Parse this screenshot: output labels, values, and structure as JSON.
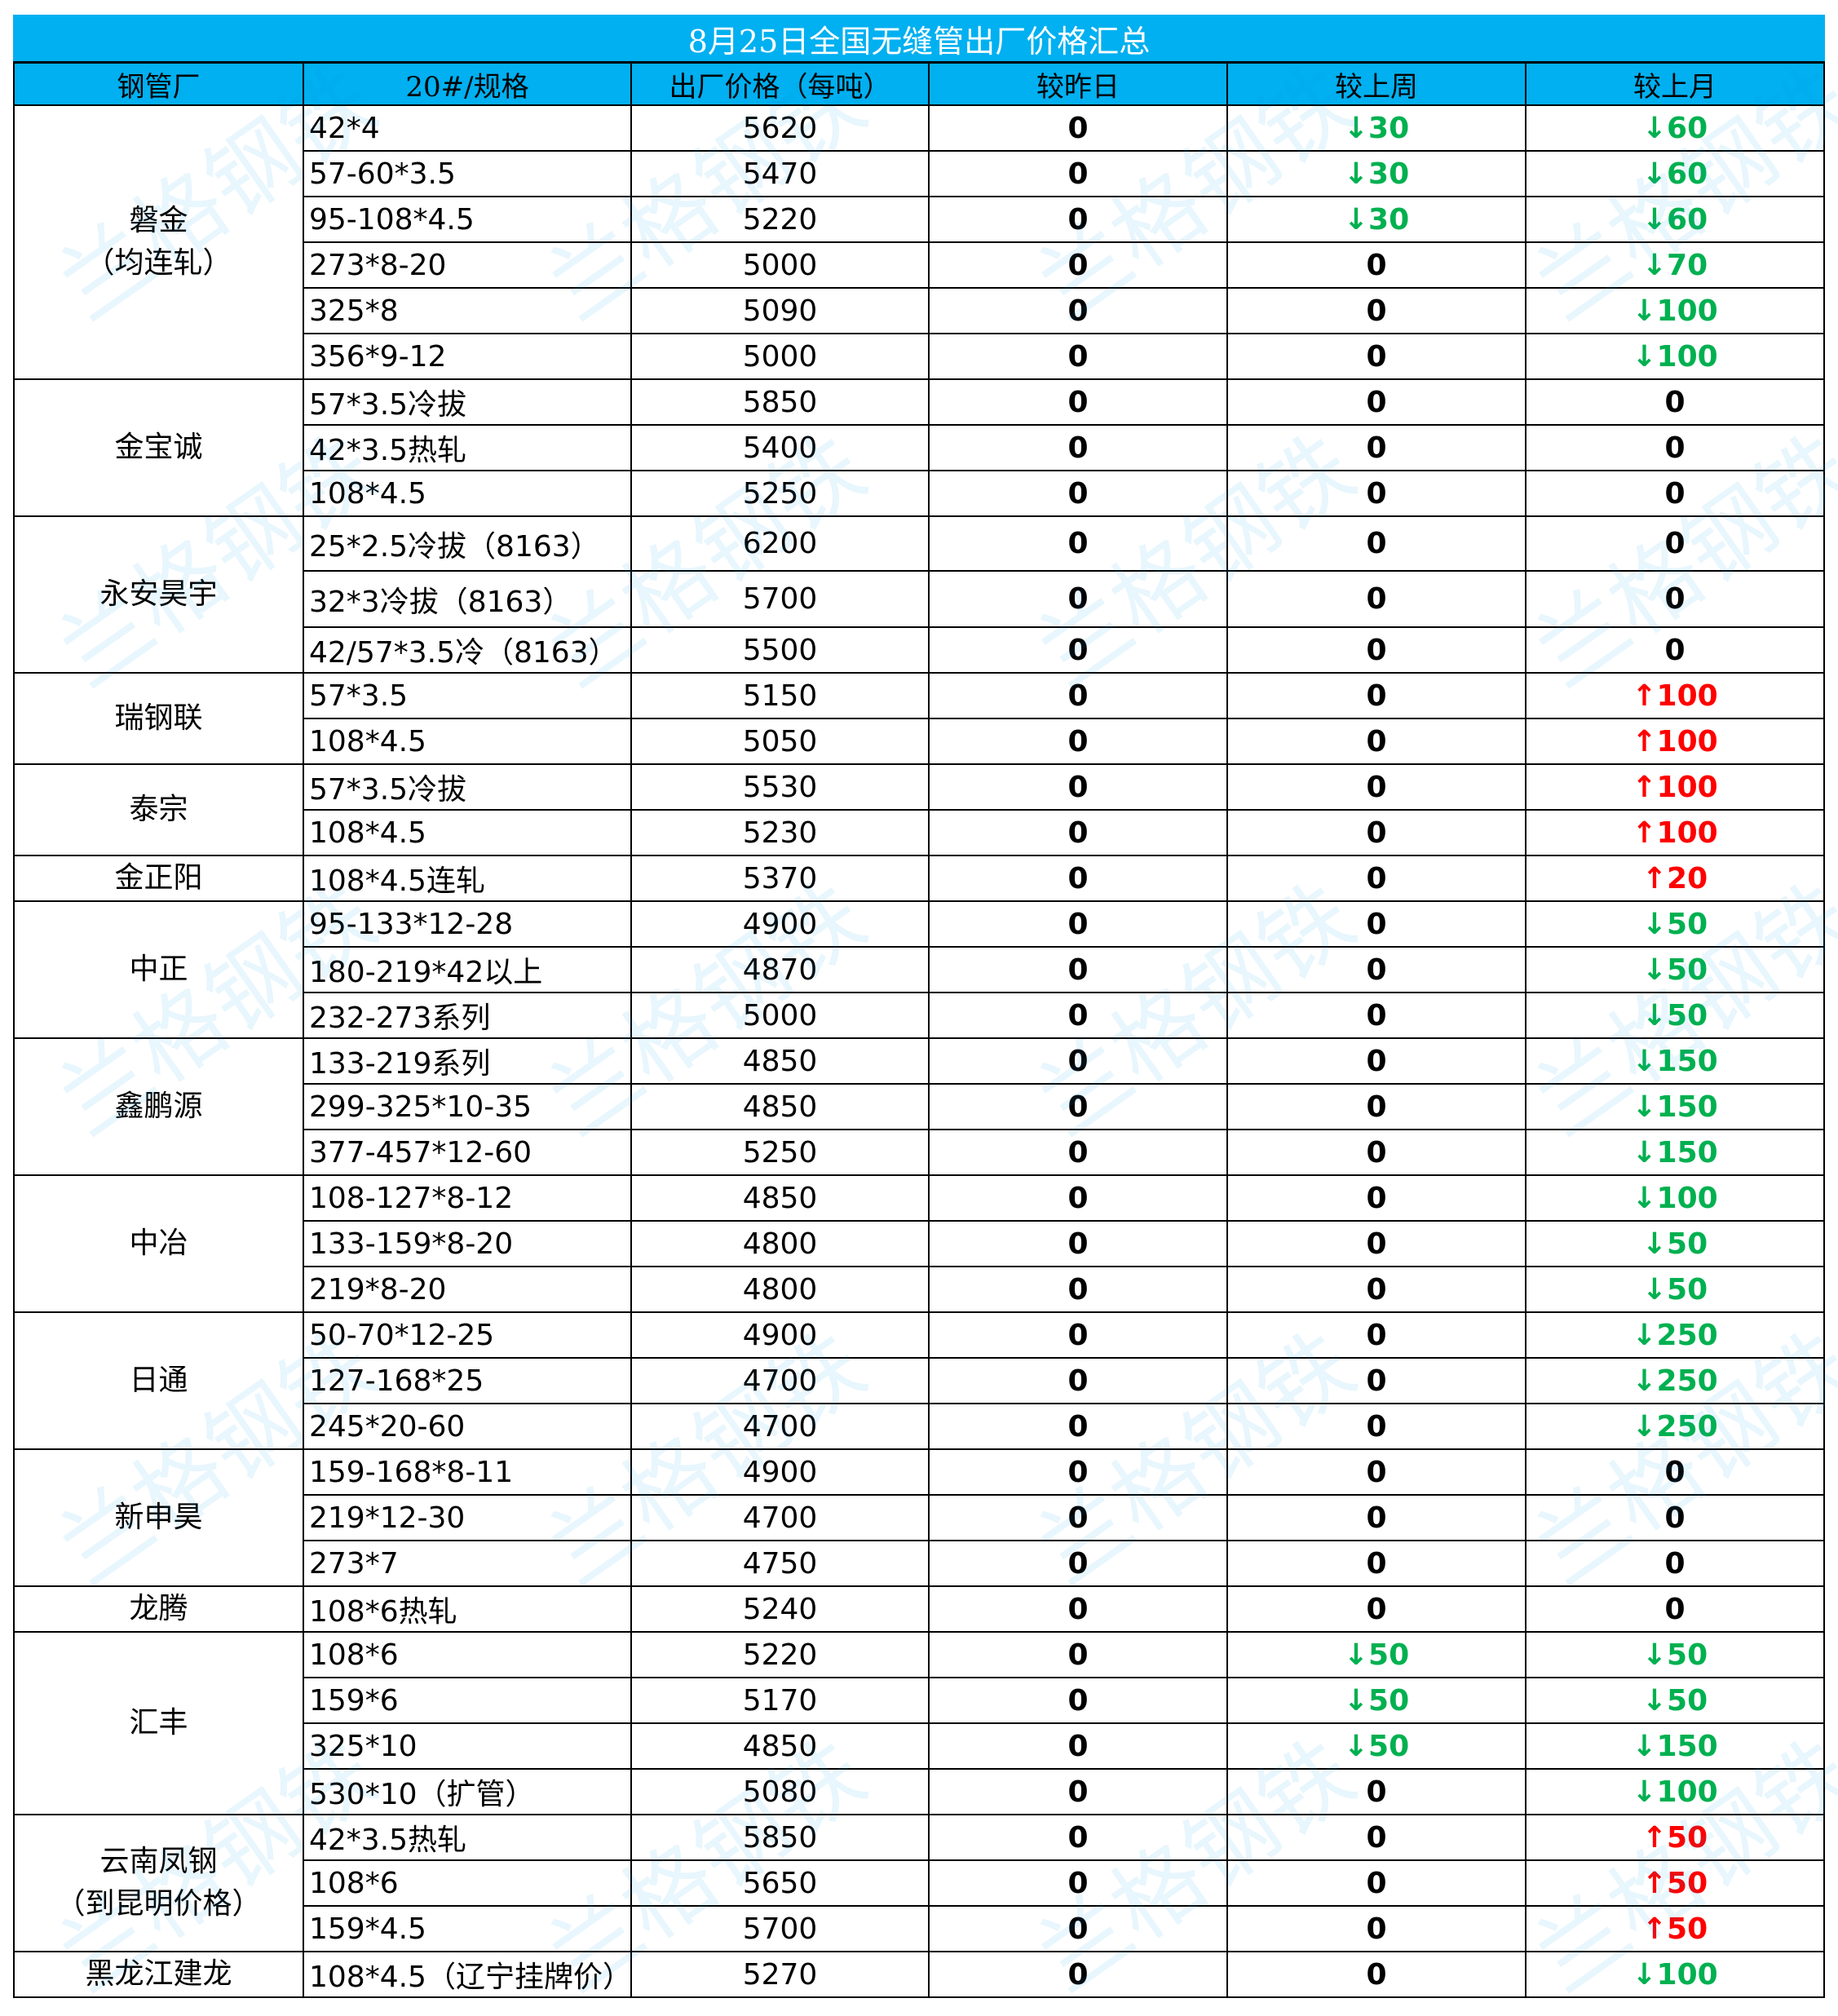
{
  "title": "8月25日全国无缝管出厂价格汇总",
  "headers": [
    "钢管厂",
    "20#/规格",
    "出厂价格（每吨）",
    "较昨日",
    "较上周",
    "较上月"
  ],
  "watermark": "兰格钢铁",
  "colors": {
    "header_bg": "#00b0f0",
    "down": "#00b050",
    "up": "#ff0000",
    "neutral": "#000000"
  },
  "groups": [
    {
      "mill": "磐金\n（均连轧）",
      "rows": [
        {
          "spec": "42*4",
          "price": "5620",
          "day": "0",
          "week": "↓30",
          "month": "↓60"
        },
        {
          "spec": "57-60*3.5",
          "price": "5470",
          "day": "0",
          "week": "↓30",
          "month": "↓60"
        },
        {
          "spec": "95-108*4.5",
          "price": "5220",
          "day": "0",
          "week": "↓30",
          "month": "↓60"
        },
        {
          "spec": "273*8-20",
          "price": "5000",
          "day": "0",
          "week": "0",
          "month": "↓70"
        },
        {
          "spec": "325*8",
          "price": "5090",
          "day": "0",
          "week": "0",
          "month": "↓100"
        },
        {
          "spec": "356*9-12",
          "price": "5000",
          "day": "0",
          "week": "0",
          "month": "↓100"
        }
      ]
    },
    {
      "mill": "金宝诚",
      "rows": [
        {
          "spec": "57*3.5冷拔",
          "price": "5850",
          "day": "0",
          "week": "0",
          "month": "0"
        },
        {
          "spec": "42*3.5热轧",
          "price": "5400",
          "day": "0",
          "week": "0",
          "month": "0"
        },
        {
          "spec": "108*4.5",
          "price": "5250",
          "day": "0",
          "week": "0",
          "month": "0"
        }
      ]
    },
    {
      "mill": "永安昊宇",
      "rows": [
        {
          "spec": "25*2.5冷拔（8163）",
          "price": "6200",
          "day": "0",
          "week": "0",
          "month": "0",
          "tall": 1
        },
        {
          "spec": "32*3冷拔（8163）",
          "price": "5700",
          "day": "0",
          "week": "0",
          "month": "0",
          "tall": 2
        },
        {
          "spec": "42/57*3.5冷（8163）",
          "price": "5500",
          "day": "0",
          "week": "0",
          "month": "0"
        }
      ]
    },
    {
      "mill": "瑞钢联",
      "rows": [
        {
          "spec": "57*3.5",
          "price": "5150",
          "day": "0",
          "week": "0",
          "month": "↑100"
        },
        {
          "spec": "108*4.5",
          "price": "5050",
          "day": "0",
          "week": "0",
          "month": "↑100"
        }
      ]
    },
    {
      "mill": "泰宗",
      "rows": [
        {
          "spec": "57*3.5冷拔",
          "price": "5530",
          "day": "0",
          "week": "0",
          "month": "↑100"
        },
        {
          "spec": "108*4.5",
          "price": "5230",
          "day": "0",
          "week": "0",
          "month": "↑100"
        }
      ]
    },
    {
      "mill": "金正阳",
      "rows": [
        {
          "spec": "108*4.5连轧",
          "price": "5370",
          "day": "0",
          "week": "0",
          "month": "↑20"
        }
      ]
    },
    {
      "mill": "中正",
      "rows": [
        {
          "spec": "95-133*12-28",
          "price": "4900",
          "day": "0",
          "week": "0",
          "month": "↓50"
        },
        {
          "spec": "180-219*42以上",
          "price": "4870",
          "day": "0",
          "week": "0",
          "month": "↓50"
        },
        {
          "spec": "232-273系列",
          "price": "5000",
          "day": "0",
          "week": "0",
          "month": "↓50"
        }
      ]
    },
    {
      "mill": "鑫鹏源",
      "rows": [
        {
          "spec": "133-219系列",
          "price": "4850",
          "day": "0",
          "week": "0",
          "month": "↓150"
        },
        {
          "spec": "299-325*10-35",
          "price": "4850",
          "day": "0",
          "week": "0",
          "month": "↓150"
        },
        {
          "spec": "377-457*12-60",
          "price": "5250",
          "day": "0",
          "week": "0",
          "month": "↓150"
        }
      ]
    },
    {
      "mill": "中冶",
      "rows": [
        {
          "spec": "108-127*8-12",
          "price": "4850",
          "day": "0",
          "week": "0",
          "month": "↓100"
        },
        {
          "spec": "133-159*8-20",
          "price": "4800",
          "day": "0",
          "week": "0",
          "month": "↓50"
        },
        {
          "spec": "219*8-20",
          "price": "4800",
          "day": "0",
          "week": "0",
          "month": "↓50"
        }
      ]
    },
    {
      "mill": "日通",
      "rows": [
        {
          "spec": "50-70*12-25",
          "price": "4900",
          "day": "0",
          "week": "0",
          "month": "↓250"
        },
        {
          "spec": "127-168*25",
          "price": "4700",
          "day": "0",
          "week": "0",
          "month": "↓250"
        },
        {
          "spec": "245*20-60",
          "price": "4700",
          "day": "0",
          "week": "0",
          "month": "↓250"
        }
      ]
    },
    {
      "mill": "新申昊",
      "rows": [
        {
          "spec": "159-168*8-11",
          "price": "4900",
          "day": "0",
          "week": "0",
          "month": "0"
        },
        {
          "spec": "219*12-30",
          "price": "4700",
          "day": "0",
          "week": "0",
          "month": "0"
        },
        {
          "spec": "273*7",
          "price": "4750",
          "day": "0",
          "week": "0",
          "month": "0"
        }
      ]
    },
    {
      "mill": "龙腾",
      "rows": [
        {
          "spec": "108*6热轧",
          "price": "5240",
          "day": "0",
          "week": "0",
          "month": "0"
        }
      ]
    },
    {
      "mill": "汇丰",
      "rows": [
        {
          "spec": "108*6",
          "price": "5220",
          "day": "0",
          "week": "↓50",
          "month": "↓50"
        },
        {
          "spec": "159*6",
          "price": "5170",
          "day": "0",
          "week": "↓50",
          "month": "↓50"
        },
        {
          "spec": "325*10",
          "price": "4850",
          "day": "0",
          "week": "↓50",
          "month": "↓150"
        },
        {
          "spec": "530*10（扩管）",
          "price": "5080",
          "day": "0",
          "week": "0",
          "month": "↓100"
        }
      ]
    },
    {
      "mill": "云南凤钢\n（到昆明价格）",
      "rows": [
        {
          "spec": "42*3.5热轧",
          "price": "5850",
          "day": "0",
          "week": "0",
          "month": "↑50"
        },
        {
          "spec": "108*6",
          "price": "5650",
          "day": "0",
          "week": "0",
          "month": "↑50"
        },
        {
          "spec": "159*4.5",
          "price": "5700",
          "day": "0",
          "week": "0",
          "month": "↑50"
        }
      ]
    },
    {
      "mill": "黑龙江建龙",
      "rows": [
        {
          "spec": "108*4.5（辽宁挂牌价）",
          "price": "5270",
          "day": "0",
          "week": "0",
          "month": "↓100"
        }
      ]
    }
  ]
}
